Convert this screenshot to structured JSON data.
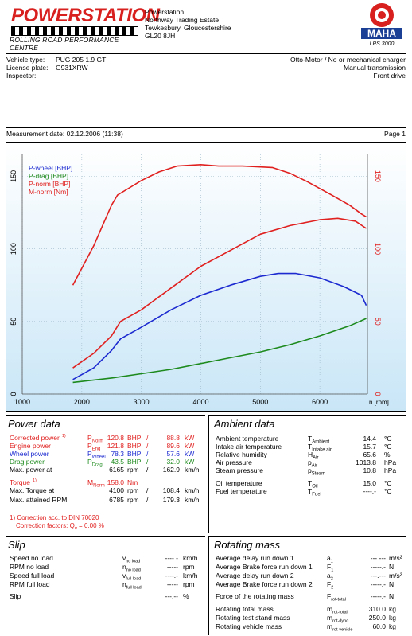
{
  "header": {
    "logo_main": "POWERSTATION",
    "logo_sub": "ROLLING ROAD PERFORMANCE CENTRE",
    "address": [
      "Powerstation",
      "Northway Trading Estate",
      "Tewkesbury, Gloucestershire",
      "GL20 8JH"
    ],
    "maha_ring": "Maschinenbau Haldenwang",
    "maha_text": "MAHA",
    "maha_model": "LPS 3000"
  },
  "vehicle": {
    "type_label": "Vehicle type:",
    "type_value": "PUG 205 1.9 GTI",
    "plate_label": "License plate:",
    "plate_value": "G931XRW",
    "inspector_label": "Inspector:",
    "engine": "Otto-Motor / No or mechanical charger",
    "transmission": "Manual transmission",
    "drive": "Front drive"
  },
  "measurement": {
    "date": "Measurement date: 02.12.2006 (11:38)",
    "page": "Page 1"
  },
  "chart_data": {
    "type": "line",
    "x_label": "n [rpm]",
    "xlim": [
      1000,
      6800
    ],
    "x_ticks": [
      1000,
      2000,
      3000,
      4000,
      5000,
      6000
    ],
    "ylim_left": [
      0,
      165
    ],
    "y_ticks_left": [
      0,
      50,
      100,
      150
    ],
    "y_ticks_right": [
      0,
      50,
      100,
      150
    ],
    "legend": [
      "P-wheel [BHP]",
      "P-drag [BHP]",
      "P-norm [BHP]",
      "M-norm [Nm]"
    ],
    "series": [
      {
        "name": "P-wheel [BHP]",
        "color": "#1c2ad0",
        "x": [
          1850,
          2200,
          2500,
          2650,
          3000,
          3500,
          4000,
          4500,
          5000,
          5300,
          5600,
          6000,
          6400,
          6700,
          6780
        ],
        "y": [
          10,
          18,
          30,
          38,
          46,
          58,
          68,
          75,
          81,
          83,
          83,
          80,
          74,
          68,
          61
        ]
      },
      {
        "name": "P-drag [BHP]",
        "color": "#1d8a1d",
        "x": [
          1850,
          2500,
          3000,
          3500,
          4000,
          4500,
          5000,
          5500,
          6000,
          6500,
          6780
        ],
        "y": [
          8,
          11,
          14,
          17,
          21,
          25,
          29,
          34,
          40,
          47,
          52
        ]
      },
      {
        "name": "P-norm [BHP]",
        "color": "#e0201f",
        "x": [
          1850,
          2200,
          2500,
          2650,
          3000,
          3500,
          4000,
          4500,
          5000,
          5500,
          6000,
          6300,
          6600,
          6780
        ],
        "y": [
          18,
          28,
          40,
          50,
          58,
          73,
          88,
          99,
          110,
          116,
          120,
          121,
          119,
          114
        ]
      },
      {
        "name": "M-norm [Nm]",
        "color": "#e0201f",
        "x": [
          1850,
          2200,
          2500,
          2600,
          2800,
          3000,
          3300,
          3600,
          4000,
          4300,
          4700,
          5200,
          5500,
          5800,
          6200,
          6500,
          6700,
          6780
        ],
        "y": [
          75,
          102,
          130,
          137,
          142,
          147,
          153,
          157,
          158,
          157,
          157,
          156,
          152,
          146,
          137,
          130,
          124,
          122
        ]
      }
    ]
  },
  "power": {
    "title": "Power data",
    "rows": [
      {
        "label": "Corrected power",
        "sup": "1)",
        "sym": "P",
        "sub": "Norm",
        "v1": "120.8",
        "u1": "BHP",
        "v2": "88.8",
        "u2": "kW",
        "cls": "red"
      },
      {
        "label": "Engine power",
        "sup": "",
        "sym": "P",
        "sub": "Eng",
        "v1": "121.8",
        "u1": "BHP",
        "v2": "89.6",
        "u2": "kW",
        "cls": "red"
      },
      {
        "label": "Wheel power",
        "sup": "",
        "sym": "P",
        "sub": "Wheel",
        "v1": "78.3",
        "u1": "BHP",
        "v2": "57.6",
        "u2": "kW",
        "cls": "blu"
      },
      {
        "label": "Drag power",
        "sup": "",
        "sym": "P",
        "sub": "Drag",
        "v1": "43.5",
        "u1": "BHP",
        "v2": "32.0",
        "u2": "kW",
        "cls": "grn"
      },
      {
        "label": "Max. power at",
        "sup": "",
        "sym": "",
        "sub": "",
        "v1": "6165",
        "u1": "rpm",
        "v2": "162.9",
        "u2": "km/h",
        "cls": ""
      },
      {
        "label": "Torque",
        "sup": "1)",
        "sym": "M",
        "sub": "Norm",
        "v1": "158.0",
        "u1": "Nm",
        "v2": "",
        "u2": "",
        "cls": "red"
      },
      {
        "label": "Max. Torque at",
        "sup": "",
        "sym": "",
        "sub": "",
        "v1": "4100",
        "u1": "rpm",
        "v2": "108.4",
        "u2": "km/h",
        "cls": ""
      },
      {
        "label": "Max. attained RPM",
        "sup": "",
        "sym": "",
        "sub": "",
        "v1": "6785",
        "u1": "rpm",
        "v2": "179.3",
        "u2": "km/h",
        "cls": ""
      }
    ],
    "note1": "1) Correction acc. to DIN 70020",
    "note2": "Correction factors: Q",
    "note2_sub": "v",
    "note2_val": "=   0.00 %"
  },
  "ambient": {
    "title": "Ambient data",
    "rows": [
      {
        "label": "Ambient temperature",
        "sym": "T",
        "sub": "Ambient",
        "val": "14.4",
        "unit": "°C"
      },
      {
        "label": "Intake air temperature",
        "sym": "T",
        "sub": "Intake air",
        "val": "15.7",
        "unit": "°C"
      },
      {
        "label": "Relative humidity",
        "sym": "H",
        "sub": "Air",
        "val": "65.6",
        "unit": "%"
      },
      {
        "label": "Air pressure",
        "sym": "p",
        "sub": "Air",
        "val": "1013.8",
        "unit": "hPa"
      },
      {
        "label": "Steam pressure",
        "sym": "p",
        "sub": "Steam",
        "val": "10.8",
        "unit": "hPa"
      },
      {
        "label": "Oil temperature",
        "sym": "T",
        "sub": "Oil",
        "val": "15.0",
        "unit": "°C"
      },
      {
        "label": "Fuel temperature",
        "sym": "T",
        "sub": "Fuel",
        "val": "----.-",
        "unit": "°C"
      }
    ]
  },
  "slip": {
    "title": "Slip",
    "rows": [
      {
        "label": "Speed no load",
        "sym": "v",
        "sub": "no load",
        "val": "----.-",
        "unit": "km/h"
      },
      {
        "label": "RPM no load",
        "sym": "n",
        "sub": "no load",
        "val": "-----",
        "unit": "rpm"
      },
      {
        "label": "Speed full load",
        "sym": "v",
        "sub": "full load",
        "val": "----.-",
        "unit": "km/h"
      },
      {
        "label": "RPM full load",
        "sym": "n",
        "sub": "full load",
        "val": "-----",
        "unit": "rpm"
      },
      {
        "label": "Slip",
        "sym": "",
        "sub": "",
        "val": "---.--",
        "unit": "%"
      }
    ]
  },
  "rotating": {
    "title": "Rotating mass",
    "rows": [
      {
        "label": "Average delay run down 1",
        "sym": "a",
        "sub": "1",
        "val": "---.---",
        "unit": "m/s²"
      },
      {
        "label": "Average Brake force run down 1",
        "sym": "F",
        "sub": "1",
        "val": "-----.-",
        "unit": "N"
      },
      {
        "label": "Average delay run down 2",
        "sym": "a",
        "sub": "2",
        "val": "---.---",
        "unit": "m/s²"
      },
      {
        "label": "Average Brake force run down 2",
        "sym": "F",
        "sub": "2",
        "val": "-----.-",
        "unit": "N"
      },
      {
        "label": "Force of the rotating mass",
        "sym": "F",
        "sub": "rot-total",
        "val": "-----.-",
        "unit": "N"
      },
      {
        "label": "Rotating total mass",
        "sym": "m",
        "sub": "rot-total",
        "val": "310.0",
        "unit": "kg"
      },
      {
        "label": "Rotating test stand mass",
        "sym": "m",
        "sub": "rot-dyno",
        "val": "250.0",
        "unit": "kg"
      },
      {
        "label": "Rotating vehicle mass",
        "sym": "m",
        "sub": "rot-vehicle",
        "val": "60.0",
        "unit": "kg"
      }
    ]
  }
}
